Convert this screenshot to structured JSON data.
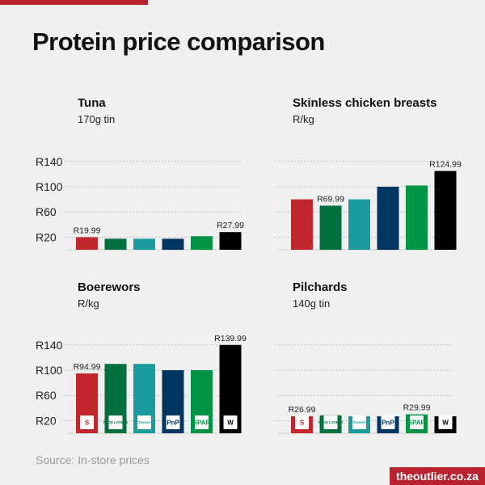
{
  "title": "Protein price comparison",
  "source": "Source: In-store prices",
  "brand": "theoutlier.co.za",
  "colors": {
    "grid": "#b5b5b5",
    "retailers": [
      "#c1272d",
      "#00703c",
      "#1a9b9c",
      "#003660",
      "#009245",
      "#000000"
    ]
  },
  "retailers": [
    {
      "name": "Shoprite",
      "logo_text": "S",
      "icon": "shoprite-logo-icon"
    },
    {
      "name": "Food Lover's Market",
      "logo_text": "FOOD LOVERS",
      "icon": "food-lovers-logo-icon"
    },
    {
      "name": "Checkers",
      "logo_text": "Checkers",
      "icon": "checkers-logo-icon"
    },
    {
      "name": "Pick n Pay",
      "logo_text": "PnP",
      "icon": "pnp-logo-icon"
    },
    {
      "name": "Spar",
      "logo_text": "SPAR",
      "icon": "spar-logo-icon"
    },
    {
      "name": "Woolworths",
      "logo_text": "W",
      "icon": "woolworths-logo-icon"
    }
  ],
  "chart_data": [
    {
      "type": "bar",
      "title": "Tuna",
      "subtitle": "170g tin",
      "categories": [
        "Shoprite",
        "Food Lover's Market",
        "Checkers",
        "Pick n Pay",
        "Spar",
        "Woolworths"
      ],
      "values": [
        19.99,
        17.5,
        17.5,
        17.5,
        21.5,
        27.99
      ],
      "data_labels": [
        "R19.99",
        "",
        "",
        "",
        "",
        "R27.99"
      ],
      "yticks": [
        "R140",
        "R100",
        "R60",
        "R20"
      ],
      "ytick_values": [
        140,
        100,
        60,
        20
      ],
      "ylim": [
        0,
        150
      ]
    },
    {
      "type": "bar",
      "title": "Skinless chicken breasts",
      "subtitle": "R/kg",
      "categories": [
        "Shoprite",
        "Food Lover's Market",
        "Checkers",
        "Pick n Pay",
        "Spar",
        "Woolworths"
      ],
      "values": [
        79.99,
        69.99,
        79.99,
        99.99,
        101.99,
        124.99
      ],
      "data_labels": [
        "",
        "R69.99",
        "",
        "",
        "",
        "R124.99"
      ],
      "yticks": [],
      "ytick_values": [
        140,
        100,
        60,
        20
      ],
      "ylim": [
        0,
        150
      ]
    },
    {
      "type": "bar",
      "title": "Boerewors",
      "subtitle": "R/kg",
      "categories": [
        "Shoprite",
        "Food Lover's Market",
        "Checkers",
        "Pick n Pay",
        "Spar",
        "Woolworths"
      ],
      "values": [
        94.99,
        109.99,
        109.99,
        99.99,
        99.99,
        139.99
      ],
      "data_labels": [
        "R94.99",
        "",
        "",
        "",
        "",
        "R139.99"
      ],
      "yticks": [
        "R140",
        "R100",
        "R60",
        "R20"
      ],
      "ytick_values": [
        140,
        100,
        60,
        20
      ],
      "ylim": [
        0,
        150
      ]
    },
    {
      "type": "bar",
      "title": "Pilchards",
      "subtitle": "140g tin",
      "categories": [
        "Shoprite",
        "Food Lover's Market",
        "Checkers",
        "Pick n Pay",
        "Spar",
        "Woolworths"
      ],
      "values": [
        26.99,
        28.5,
        26.99,
        26.99,
        29.99,
        26.99
      ],
      "data_labels": [
        "R26.99",
        "",
        "",
        "",
        "R29.99",
        ""
      ],
      "yticks": [],
      "ytick_values": [
        140,
        100,
        60,
        20
      ],
      "ylim": [
        0,
        150
      ]
    }
  ]
}
